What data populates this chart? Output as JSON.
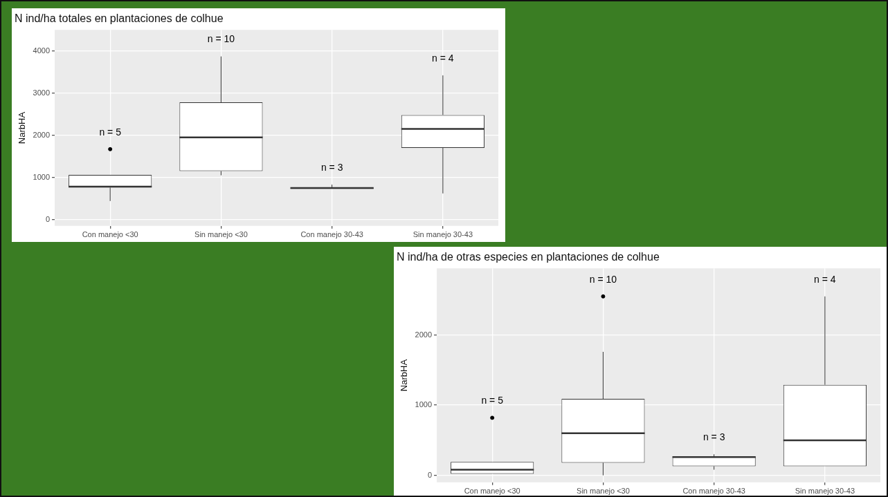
{
  "chart_data": [
    {
      "type": "box",
      "title": "N ind/ha totales en plantaciones de colhue",
      "ylabel": "NarbHA",
      "categories": [
        "Con manejo <30",
        "Sin manejo <30",
        "Con manejo 30-43",
        "Sin manejo 30-43"
      ],
      "boxes": [
        {
          "low": 440,
          "q1": 760,
          "median": 780,
          "q3": 1060,
          "high": 1060,
          "outliers": [
            1670
          ]
        },
        {
          "low": 1050,
          "q1": 1150,
          "median": 1950,
          "q3": 2780,
          "high": 3870
        },
        {
          "low": 730,
          "q1": 730,
          "median": 750,
          "q3": 760,
          "high": 830
        },
        {
          "low": 620,
          "q1": 1700,
          "median": 2150,
          "q3": 2480,
          "high": 3420
        }
      ],
      "ylim": [
        -150,
        4500
      ],
      "yticks": [
        0,
        1000,
        2000,
        3000,
        4000
      ],
      "grid": true,
      "annotations": [
        "n = 5",
        "n = 10",
        "n = 3",
        "n = 4"
      ]
    },
    {
      "type": "box",
      "title": "N ind/ha de otras especies en plantaciones de colhue",
      "ylabel": "NarbHA",
      "categories": [
        "Con manejo <30",
        "Sin manejo <30",
        "Con manejo 30-43",
        "Sin manejo 30-43"
      ],
      "boxes": [
        {
          "low": 20,
          "q1": 20,
          "median": 80,
          "q3": 190,
          "high": 190,
          "outliers": [
            820
          ]
        },
        {
          "low": 0,
          "q1": 180,
          "median": 600,
          "q3": 1090,
          "high": 1760,
          "outliers": [
            2550
          ]
        },
        {
          "low": 80,
          "q1": 130,
          "median": 260,
          "q3": 270,
          "high": 300
        },
        {
          "low": 130,
          "q1": 130,
          "median": 500,
          "q3": 1290,
          "high": 2550
        }
      ],
      "ylim": [
        -100,
        2950
      ],
      "yticks": [
        0,
        1000,
        2000
      ],
      "grid": true,
      "annotations": [
        "n = 5",
        "n = 10",
        "n = 3",
        "n = 4"
      ]
    }
  ]
}
